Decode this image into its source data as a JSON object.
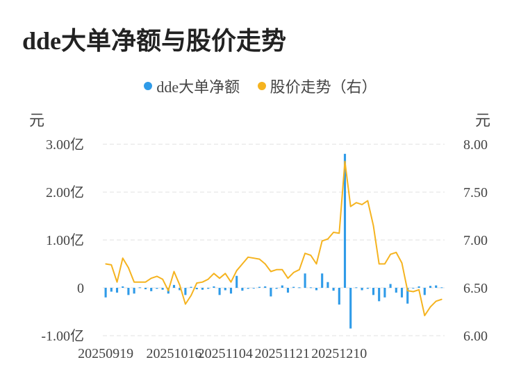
{
  "title": "dde大单净额与股价走势",
  "legend": {
    "series1": "dde大单净额",
    "series2": "股价走势（右）"
  },
  "units": {
    "left": "元",
    "right": "元"
  },
  "colors": {
    "bar": "#2f9be8",
    "line": "#f5b31f",
    "grid": "#e0e0e0"
  },
  "chart_data": {
    "type": "bar",
    "x_tick_labels": [
      "20250919",
      "20251016",
      "20251104",
      "20251121",
      "20251210"
    ],
    "y_left_ticks": [
      "3.00亿",
      "2.00亿",
      "1.00亿",
      "0",
      "-1.00亿"
    ],
    "y_right_ticks": [
      "8.00",
      "7.50",
      "7.00",
      "6.50",
      "6.00"
    ],
    "y_left_range": [
      -1.0,
      3.0
    ],
    "y_right_range": [
      6.0,
      8.0
    ],
    "series": [
      {
        "name": "dde大单净额",
        "type": "bar",
        "axis": "left",
        "values": [
          -0.2,
          -0.08,
          -0.1,
          0.03,
          -0.15,
          -0.12,
          0.01,
          -0.03,
          -0.07,
          -0.02,
          -0.04,
          -0.12,
          0.06,
          -0.05,
          -0.15,
          0.02,
          -0.03,
          -0.04,
          -0.02,
          0.03,
          -0.15,
          -0.05,
          -0.12,
          0.25,
          -0.06,
          -0.02,
          -0.01,
          0.02,
          0.03,
          -0.18,
          -0.02,
          0.05,
          -0.1,
          0.02,
          0.01,
          0.3,
          0.01,
          -0.05,
          0.3,
          0.12,
          -0.06,
          -0.35,
          2.8,
          -0.85,
          0.01,
          -0.05,
          -0.02,
          -0.15,
          -0.28,
          -0.2,
          0.08,
          -0.1,
          -0.2,
          -0.33,
          -0.01,
          0.03,
          -0.15,
          0.04,
          0.05,
          0.01
        ]
      },
      {
        "name": "股价走势（右）",
        "type": "line",
        "axis": "right",
        "values": [
          6.75,
          6.74,
          6.56,
          6.81,
          6.71,
          6.56,
          6.56,
          6.56,
          6.6,
          6.62,
          6.59,
          6.47,
          6.67,
          6.53,
          6.33,
          6.42,
          6.55,
          6.56,
          6.59,
          6.65,
          6.6,
          6.65,
          6.56,
          6.68,
          6.75,
          6.82,
          6.81,
          6.8,
          6.75,
          6.67,
          6.69,
          6.69,
          6.6,
          6.66,
          6.69,
          6.86,
          6.84,
          6.75,
          6.99,
          7.01,
          7.08,
          7.07,
          7.82,
          7.35,
          7.39,
          7.37,
          7.41,
          7.15,
          6.75,
          6.75,
          6.85,
          6.87,
          6.76,
          6.47,
          6.46,
          6.48,
          6.21,
          6.3,
          6.36,
          6.38
        ]
      }
    ]
  }
}
